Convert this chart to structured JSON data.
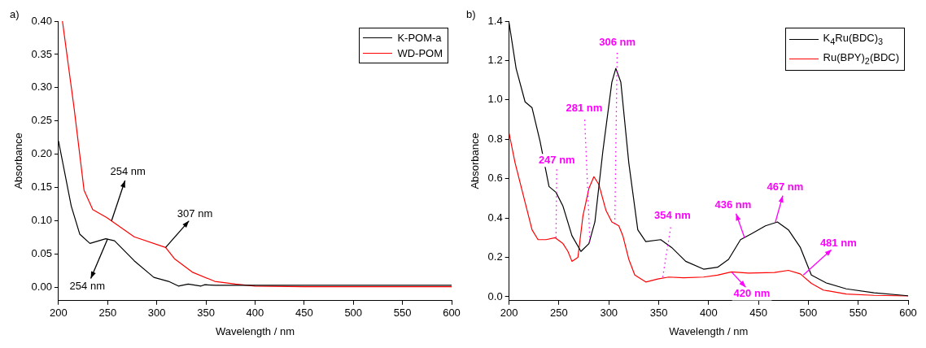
{
  "chart_data": [
    {
      "type": "line",
      "xlabel": "Wavelength / nm",
      "ylabel": "Absorbance",
      "xlim": [
        200,
        600
      ],
      "ylim": [
        -0.02,
        0.4
      ],
      "xticks": [
        200,
        250,
        300,
        350,
        400,
        450,
        500,
        550,
        600
      ],
      "yticks": [
        {
          "value": 0,
          "label": "0.00"
        },
        {
          "value": 0.05,
          "label": "0.05"
        },
        {
          "value": 0.1,
          "label": "0.10"
        },
        {
          "value": 0.15,
          "label": "0.15"
        },
        {
          "value": 0.2,
          "label": "0.20"
        },
        {
          "value": 0.25,
          "label": "0.25"
        },
        {
          "value": 0.3,
          "label": "0.30"
        },
        {
          "value": 0.35,
          "label": "0.35"
        },
        {
          "value": 0.4,
          "label": "0.40"
        }
      ],
      "legend": "top right",
      "marker": "none",
      "line_style": "solid",
      "series": [
        {
          "name": "K-POM-a",
          "color": "#000000",
          "x": [
            200,
            213,
            221.6,
            232,
            248,
            257,
            277,
            297,
            312,
            322,
            332,
            345,
            349,
            360,
            400,
            450,
            500,
            550,
            600
          ],
          "values": [
            0.22,
            0.122,
            0.08,
            0.066,
            0.073,
            0.07,
            0.04,
            0.015,
            0.009,
            0.002,
            0.005,
            0.002,
            0.004,
            0.003,
            0.003,
            0.003,
            0.003,
            0.003,
            0.003
          ]
        },
        {
          "name": "WD-POM",
          "color": "#ff0000",
          "x": [
            204,
            215.8,
            226,
            234.8,
            249,
            277,
            309,
            318,
            336,
            359,
            380,
            400,
            450,
            500,
            550,
            600
          ],
          "values": [
            0.4,
            0.27,
            0.146,
            0.117,
            0.105,
            0.076,
            0.06,
            0.043,
            0.023,
            0.009,
            0.005,
            0.002,
            0.001,
            0.001,
            0.001,
            0.001
          ]
        }
      ],
      "annotations": [
        "a)",
        {
          "text": "254 nm",
          "x": 254,
          "y": 0.1
        },
        {
          "text": "307 nm",
          "x": 309,
          "y": 0.06
        },
        {
          "text": "254 nm",
          "x": 250,
          "y": 0.073
        }
      ]
    },
    {
      "type": "line",
      "xlabel": "Wavelength / nm",
      "ylabel": "Absorbance",
      "xlim": [
        200,
        600
      ],
      "ylim": [
        -0.02,
        1.4
      ],
      "xticks": [
        200,
        250,
        300,
        350,
        400,
        450,
        500,
        550,
        600
      ],
      "yticks": [
        {
          "value": 0,
          "label": "0.0"
        },
        {
          "value": 0.2,
          "label": "0.2"
        },
        {
          "value": 0.4,
          "label": "0.4"
        },
        {
          "value": 0.6,
          "label": "0.6"
        },
        {
          "value": 0.8,
          "label": "0.8"
        },
        {
          "value": 1,
          "label": "1.0"
        },
        {
          "value": 1.2,
          "label": "1.2"
        },
        {
          "value": 1.4,
          "label": "1.4"
        }
      ],
      "legend": "top right",
      "marker": "none",
      "line_style": "solid",
      "series": [
        {
          "name": "K$_{4}$Ru(BDC)$_{3}$",
          "color": "#000000",
          "x": [
            200,
            207,
            216,
            223,
            231,
            240,
            247,
            254,
            263,
            272,
            280,
            286,
            294,
            303,
            307,
            312,
            320,
            329,
            337,
            352,
            363,
            377,
            395,
            409,
            420,
            432,
            443,
            457,
            469,
            480,
            492,
            503,
            518,
            538,
            566,
            600
          ],
          "values": [
            1.39,
            1.16,
            0.99,
            0.96,
            0.79,
            0.56,
            0.53,
            0.46,
            0.31,
            0.23,
            0.27,
            0.38,
            0.74,
            1.09,
            1.16,
            1.09,
            0.68,
            0.34,
            0.28,
            0.29,
            0.25,
            0.18,
            0.14,
            0.15,
            0.19,
            0.29,
            0.32,
            0.36,
            0.38,
            0.34,
            0.25,
            0.11,
            0.07,
            0.04,
            0.02,
            0.005
          ]
        },
        {
          "name": "Ru(BPY)$_{2}$(BDC)",
          "color": "#ff0000",
          "x": [
            200,
            206,
            214,
            223,
            229,
            237,
            246,
            254,
            259,
            263,
            269,
            274,
            280,
            285,
            290,
            297,
            303,
            310,
            314,
            320,
            326,
            337,
            349,
            360,
            375,
            395,
            409,
            423,
            440,
            466,
            480,
            492,
            503,
            515,
            538,
            566,
            600
          ],
          "values": [
            0.83,
            0.68,
            0.52,
            0.34,
            0.29,
            0.29,
            0.3,
            0.27,
            0.23,
            0.18,
            0.2,
            0.41,
            0.55,
            0.61,
            0.57,
            0.44,
            0.38,
            0.36,
            0.31,
            0.19,
            0.11,
            0.075,
            0.09,
            0.1,
            0.096,
            0.1,
            0.11,
            0.126,
            0.12,
            0.123,
            0.134,
            0.116,
            0.068,
            0.034,
            0.014,
            0.007,
            0.004
          ]
        }
      ],
      "annotations": [
        "b)",
        {
          "text": "247 nm",
          "x": 247,
          "y": 0.3
        },
        {
          "text": "281 nm",
          "x": 281,
          "y": 0.28
        },
        {
          "text": "306 nm",
          "x": 306,
          "y": 0.37
        },
        {
          "text": "354 nm",
          "x": 354,
          "y": 0.1
        },
        {
          "text": "436 nm",
          "x": 436,
          "y": 0.3
        },
        {
          "text": "467 nm",
          "x": 467,
          "y": 0.38
        },
        {
          "text": "481 nm",
          "x": 495,
          "y": 0.11
        },
        {
          "text": "420 nm",
          "x": 423,
          "y": 0.126
        }
      ]
    }
  ]
}
